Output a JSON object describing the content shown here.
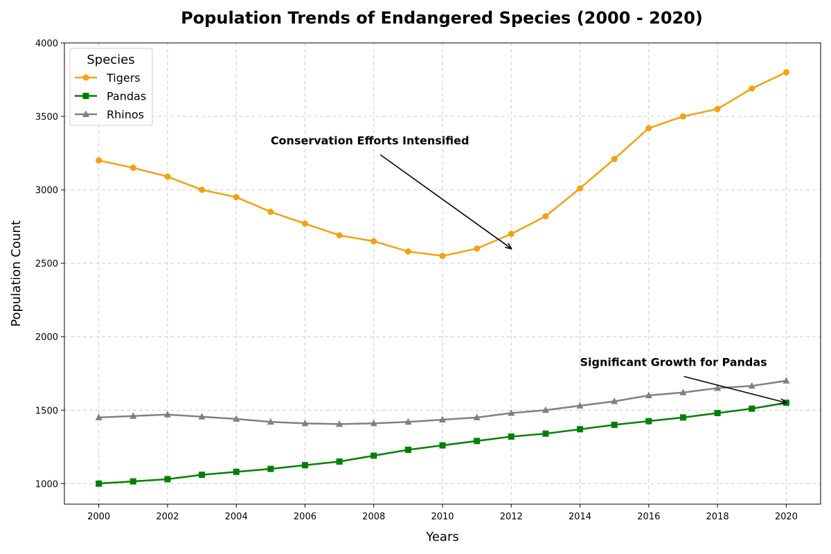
{
  "chart_data": {
    "type": "line",
    "title": "Population Trends of Endangered Species (2000 - 2020)",
    "xlabel": "Years",
    "ylabel": "Population Count",
    "xlim": [
      1999,
      2021
    ],
    "ylim": [
      860,
      4000
    ],
    "x_ticks": [
      "2000",
      "2002",
      "2004",
      "2006",
      "2008",
      "2010",
      "2012",
      "2014",
      "2016",
      "2018",
      "2020"
    ],
    "y_ticks": [
      "1000",
      "1500",
      "2000",
      "2500",
      "3000",
      "3500",
      "4000"
    ],
    "grid": true,
    "legend": {
      "title": "Species",
      "placement": "top-left"
    },
    "x": [
      2000,
      2001,
      2002,
      2003,
      2004,
      2005,
      2006,
      2007,
      2008,
      2009,
      2010,
      2011,
      2012,
      2013,
      2014,
      2015,
      2016,
      2017,
      2018,
      2019,
      2020
    ],
    "series": [
      {
        "name": "Tigers",
        "color": "#f5a00f",
        "marker": "circle",
        "values": [
          3200,
          3150,
          3090,
          3000,
          2950,
          2850,
          2770,
          2690,
          2650,
          2580,
          2550,
          2600,
          2700,
          2820,
          3010,
          3210,
          3420,
          3500,
          3550,
          3690,
          3800
        ]
      },
      {
        "name": "Pandas",
        "color": "#008000",
        "marker": "square",
        "values": [
          1000,
          1015,
          1030,
          1060,
          1080,
          1100,
          1125,
          1150,
          1190,
          1230,
          1260,
          1290,
          1320,
          1340,
          1370,
          1400,
          1425,
          1450,
          1480,
          1510,
          1550
        ]
      },
      {
        "name": "Rhinos",
        "color": "#808080",
        "marker": "triangle",
        "values": [
          1450,
          1460,
          1470,
          1455,
          1440,
          1420,
          1410,
          1405,
          1410,
          1420,
          1435,
          1450,
          1480,
          1500,
          1530,
          1560,
          1600,
          1620,
          1650,
          1665,
          1700
        ]
      }
    ],
    "annotations": [
      {
        "text": "Conservation Efforts Intensified",
        "point": [
          2012,
          2600
        ],
        "text_at": [
          2005,
          3310
        ]
      },
      {
        "text": "Significant Growth for Pandas",
        "point": [
          2020,
          1550
        ],
        "text_at": [
          2014,
          1800
        ]
      }
    ]
  }
}
